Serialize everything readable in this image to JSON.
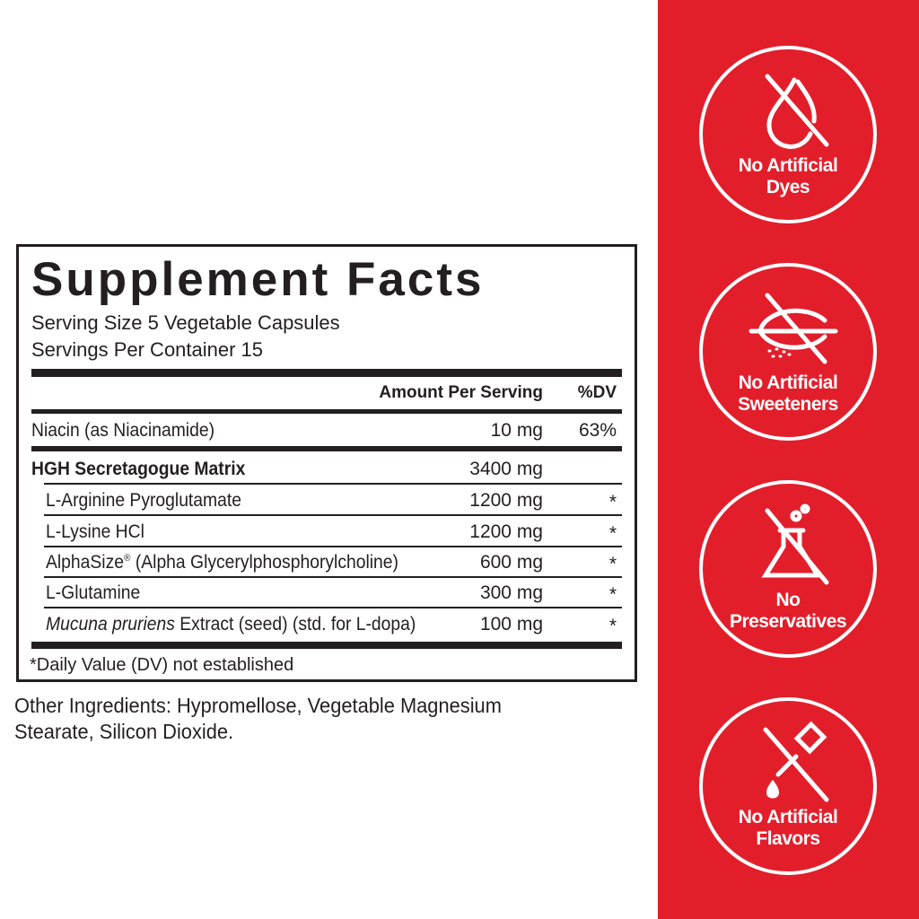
{
  "facts": {
    "title": "Supplement Facts",
    "serving_size": "Serving Size 5 Vegetable Capsules",
    "servings_per_container": "Servings Per Container 15",
    "header_amount": "Amount Per Serving",
    "header_dv": "%DV",
    "niacin": {
      "name": "Niacin (as Niacinamide)",
      "amount": "10 mg",
      "dv": "63%"
    },
    "matrix": {
      "name": "HGH Secretagogue Matrix",
      "amount": "3400 mg"
    },
    "ingredients": [
      {
        "name": "L-Arginine Pyroglutamate",
        "amount": "1200 mg",
        "dv": "*"
      },
      {
        "name": "L-Lysine HCl",
        "amount": "1200 mg",
        "dv": "*"
      },
      {
        "name_main": "AlphaSize",
        "name_mark": "®",
        "name_rest": " (Alpha Glycerylphosphorylcholine)",
        "amount": "600 mg",
        "dv": "*"
      },
      {
        "name": "L-Glutamine",
        "amount": "300 mg",
        "dv": "*"
      },
      {
        "name_italic": "Mucuna pruriens",
        "name_rest": " Extract (seed) (std. for L-dopa)",
        "amount": "100 mg",
        "dv": "*"
      }
    ],
    "footnote": "*Daily Value (DV) not established"
  },
  "other_ingredients": "Other Ingredients: Hypromellose, Vegetable Magnesium Stearate, Silicon Dioxide.",
  "badges": [
    {
      "icon": "no-drop-icon",
      "line1": "No Artificial",
      "line2": "Dyes"
    },
    {
      "icon": "no-sweetener-icon",
      "line1": "No Artificial",
      "line2": "Sweeteners"
    },
    {
      "icon": "no-flask-icon",
      "line1": "No",
      "line2": "Preservatives"
    },
    {
      "icon": "no-dropper-icon",
      "line1": "No Artificial",
      "line2": "Flavors"
    }
  ],
  "colors": {
    "panel": "#e31e2b",
    "text": "#231f20"
  }
}
